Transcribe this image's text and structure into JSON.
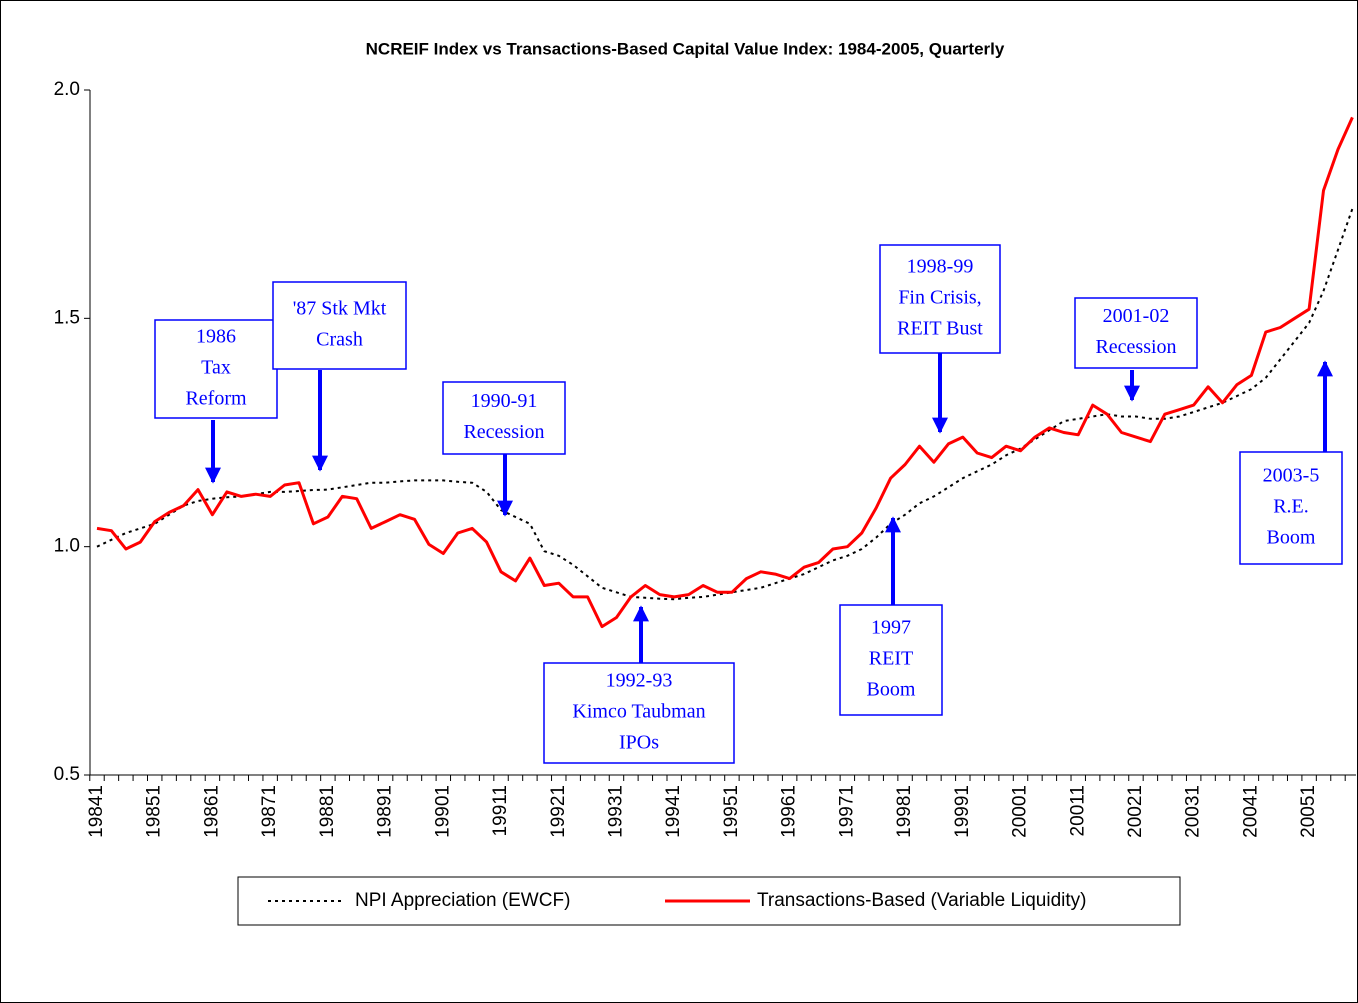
{
  "chart_data": {
    "type": "line",
    "title": "NCREIF Index vs Transactions-Based Capital Value Index: 1984-2005, Quarterly",
    "categories": [
      "19841",
      null,
      null,
      null,
      "19851",
      null,
      null,
      null,
      "19861",
      null,
      null,
      null,
      "19871",
      null,
      null,
      null,
      "19881",
      null,
      null,
      null,
      "19891",
      null,
      null,
      null,
      "19901",
      null,
      null,
      null,
      "19911",
      null,
      null,
      null,
      "19921",
      null,
      null,
      null,
      "19931",
      null,
      null,
      null,
      "19941",
      null,
      null,
      null,
      "19951",
      null,
      null,
      null,
      "19961",
      null,
      null,
      null,
      "19971",
      null,
      null,
      null,
      "19981",
      null,
      null,
      null,
      "19991",
      null,
      null,
      null,
      "20001",
      null,
      null,
      null,
      "20011",
      null,
      null,
      null,
      "20021",
      null,
      null,
      null,
      "20031",
      null,
      null,
      null,
      "20041",
      null,
      null,
      null,
      "20051",
      null,
      null,
      null
    ],
    "series": [
      {
        "name": "NPI Appreciation (EWCF)",
        "color": "#000000",
        "dashed": true,
        "values": [
          1.0,
          1.015,
          1.03,
          1.04,
          1.05,
          1.07,
          1.09,
          1.1,
          1.105,
          1.108,
          1.11,
          1.115,
          1.12,
          1.12,
          1.122,
          1.124,
          1.125,
          1.13,
          1.135,
          1.14,
          1.14,
          1.143,
          1.145,
          1.145,
          1.145,
          1.142,
          1.14,
          1.12,
          1.08,
          1.065,
          1.05,
          0.99,
          0.98,
          0.96,
          0.935,
          0.91,
          0.9,
          0.89,
          0.888,
          0.886,
          0.885,
          0.888,
          0.89,
          0.895,
          0.9,
          0.905,
          0.91,
          0.92,
          0.93,
          0.94,
          0.955,
          0.97,
          0.98,
          0.995,
          1.02,
          1.05,
          1.07,
          1.095,
          1.11,
          1.13,
          1.15,
          1.165,
          1.18,
          1.2,
          1.215,
          1.235,
          1.255,
          1.275,
          1.28,
          1.285,
          1.29,
          1.285,
          1.285,
          1.28,
          1.28,
          1.285,
          1.295,
          1.305,
          1.315,
          1.33,
          1.345,
          1.37,
          1.41,
          1.45,
          1.49,
          1.56,
          1.65,
          1.74
        ]
      },
      {
        "name": "Transactions-Based (Variable Liquidity)",
        "color": "#ff0000",
        "dashed": false,
        "values": [
          1.04,
          1.035,
          0.995,
          1.01,
          1.055,
          1.075,
          1.09,
          1.125,
          1.07,
          1.12,
          1.11,
          1.115,
          1.11,
          1.135,
          1.14,
          1.05,
          1.065,
          1.11,
          1.105,
          1.04,
          1.055,
          1.07,
          1.06,
          1.005,
          0.985,
          1.03,
          1.04,
          1.01,
          0.945,
          0.925,
          0.975,
          0.915,
          0.92,
          0.89,
          0.89,
          0.825,
          0.845,
          0.89,
          0.915,
          0.895,
          0.89,
          0.895,
          0.915,
          0.9,
          0.9,
          0.93,
          0.945,
          0.94,
          0.93,
          0.955,
          0.965,
          0.995,
          1.0,
          1.03,
          1.085,
          1.15,
          1.18,
          1.22,
          1.185,
          1.225,
          1.24,
          1.205,
          1.195,
          1.22,
          1.21,
          1.24,
          1.26,
          1.25,
          1.245,
          1.31,
          1.29,
          1.25,
          1.24,
          1.23,
          1.29,
          1.3,
          1.31,
          1.35,
          1.315,
          1.355,
          1.375,
          1.47,
          1.48,
          1.5,
          1.52,
          1.78,
          1.87,
          1.94
        ]
      }
    ],
    "ylim": [
      0.5,
      2.0
    ],
    "yticks": [
      0.5,
      {
        "value": 1,
        "label": "1.0"
      },
      1.5,
      {
        "value": 2,
        "label": "2.0"
      }
    ],
    "grid": false,
    "legend": "bottom",
    "annotation_color": "#0000ff",
    "annotations": [
      {
        "lines": [
          "1986",
          "Tax",
          "Reform"
        ]
      },
      {
        "lines": [
          "'87 Stk Mkt",
          "Crash"
        ]
      },
      {
        "lines": [
          "1990-91",
          "Recession"
        ]
      },
      {
        "lines": [
          "1992-93",
          "Kimco Taubman",
          "IPOs"
        ]
      },
      {
        "lines": [
          "1997",
          "REIT",
          "Boom"
        ]
      },
      {
        "lines": [
          "1998-99",
          "Fin Crisis,",
          "REIT Bust"
        ]
      },
      {
        "lines": [
          "2001-02",
          "Recession"
        ]
      },
      {
        "lines": [
          "2003-5",
          "R.E.",
          "Boom"
        ]
      }
    ]
  }
}
